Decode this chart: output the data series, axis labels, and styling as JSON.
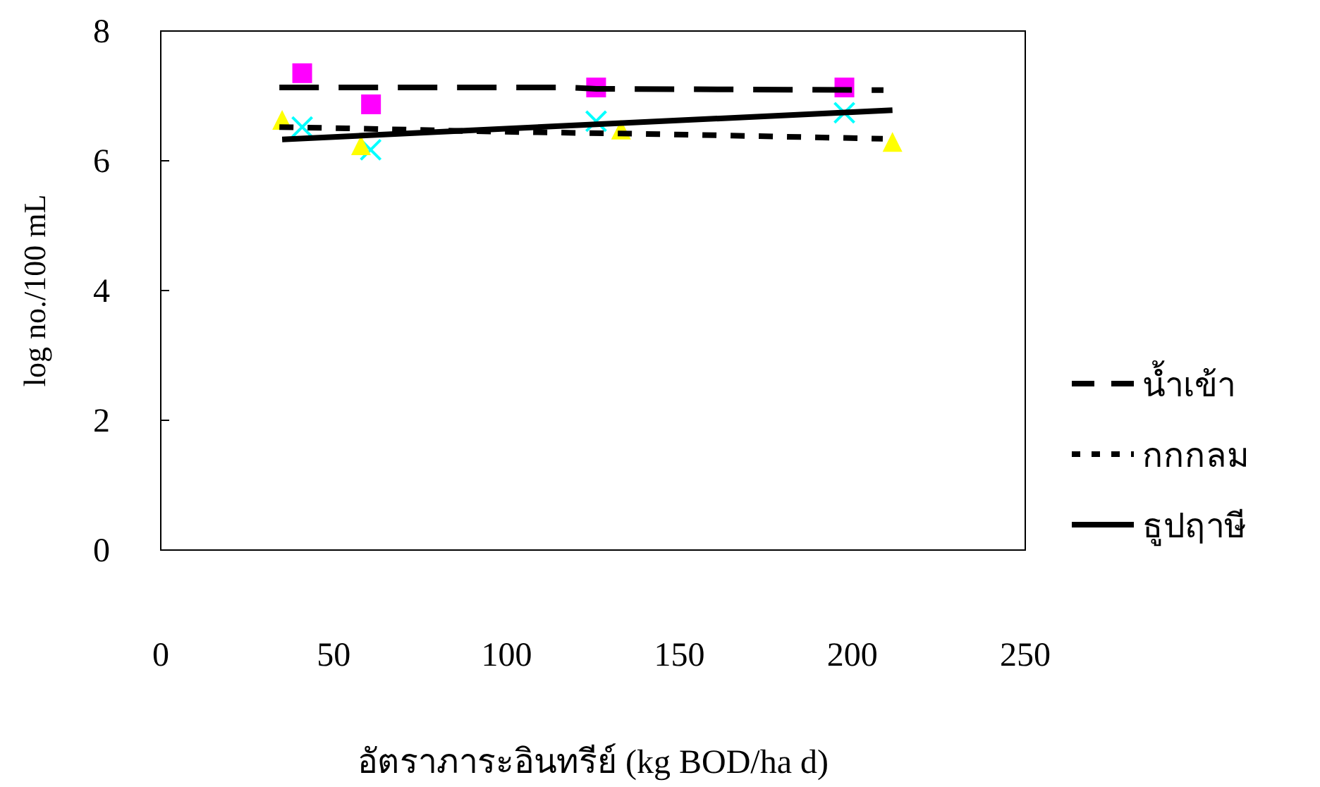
{
  "chart_data": {
    "type": "scatter",
    "xlabel": "อัตราภาระอินทรีย์ (kg BOD/ha d)",
    "ylabel": "log no./100 mL",
    "xlim": [
      0,
      250
    ],
    "ylim": [
      0,
      8
    ],
    "xticks": [
      0,
      50,
      100,
      150,
      200,
      250
    ],
    "yticks": [
      0,
      2,
      4,
      6,
      8
    ],
    "legend": "right",
    "grid": false,
    "series": [
      {
        "marker": "square",
        "color": "#ff00ff",
        "x": [
          40.9,
          60.8,
          125.9,
          197.7
        ],
        "values": [
          7.35,
          6.87,
          7.13,
          7.13
        ]
      },
      {
        "marker": "cross",
        "color": "#00ffff",
        "x": [
          40.9,
          60.7,
          125.9,
          197.7
        ],
        "values": [
          6.52,
          6.17,
          6.61,
          6.74
        ]
      },
      {
        "marker": "triangle",
        "color": "#ffff00",
        "x": [
          35.1,
          57.9,
          133.1,
          211.6
        ],
        "values": [
          6.63,
          6.24,
          6.48,
          6.29
        ]
      },
      {
        "type": "line",
        "name": "น้ำเข้า",
        "line_style": "dashed",
        "color": "#000000",
        "marker": "none",
        "x": [
          34.3,
          118,
          126,
          209
        ],
        "values": [
          7.13,
          7.13,
          7.11,
          7.09
        ]
      },
      {
        "type": "line",
        "name": "กกกลม",
        "line_style": "dotted",
        "color": "#000000",
        "marker": "none",
        "x": [
          34.3,
          53.8,
          96.2,
          145,
          208.8
        ],
        "values": [
          6.52,
          6.5,
          6.45,
          6.41,
          6.34
        ]
      },
      {
        "type": "line",
        "name": "ธูปฤาษี",
        "line_style": "solid",
        "color": "#000000",
        "marker": "none",
        "x": [
          35.1,
          211.6
        ],
        "values": [
          6.33,
          6.78
        ]
      }
    ]
  }
}
